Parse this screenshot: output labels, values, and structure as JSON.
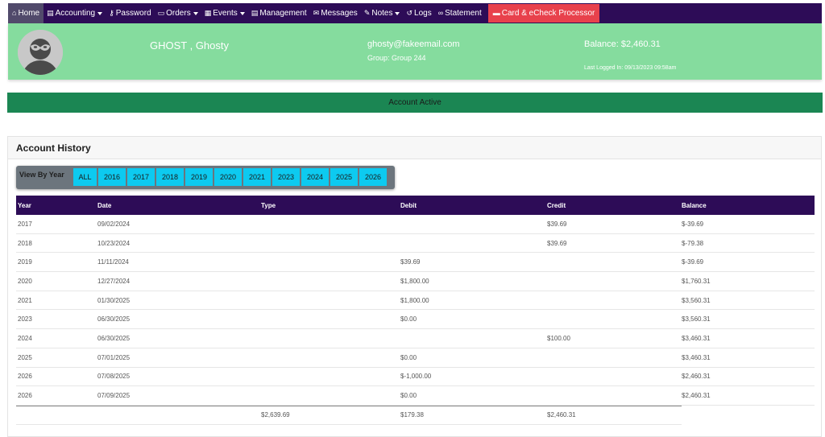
{
  "nav": {
    "items": [
      {
        "label": "Home",
        "icon": "home-icon",
        "glyph": "⌂",
        "dropdown": false,
        "active": true
      },
      {
        "label": "Accounting",
        "icon": "document-icon",
        "glyph": "▤",
        "dropdown": true
      },
      {
        "label": "Password",
        "icon": "key-icon",
        "glyph": "⚷",
        "dropdown": false
      },
      {
        "label": "Orders",
        "icon": "inbox-icon",
        "glyph": "▭",
        "dropdown": true
      },
      {
        "label": "Events",
        "icon": "calendar-icon",
        "glyph": "▦",
        "dropdown": true
      },
      {
        "label": "Management",
        "icon": "document-icon",
        "glyph": "▤",
        "dropdown": false
      },
      {
        "label": "Messages",
        "icon": "chat-icon",
        "glyph": "✉",
        "dropdown": false
      },
      {
        "label": "Notes",
        "icon": "notes-icon",
        "glyph": "✎",
        "dropdown": true
      },
      {
        "label": "Logs",
        "icon": "history-icon",
        "glyph": "↺",
        "dropdown": false
      },
      {
        "label": "Statement",
        "icon": "link-icon",
        "glyph": "∞",
        "dropdown": false
      }
    ],
    "processor": {
      "label": "Card & eCheck Processor",
      "icon": "credit-card-icon",
      "glyph": "▬"
    }
  },
  "profile": {
    "name": "GHOST , Ghosty",
    "email": "ghosty@fakeemail.com",
    "group": "Group: Group 244",
    "balance": "Balance: $2,460.31",
    "last_logged": "Last Logged In: 09/13/2023 09:58am"
  },
  "status": "Account Active",
  "history": {
    "title": "Account History",
    "filter_label": "View By Year",
    "years": [
      "ALL",
      "2016",
      "2017",
      "2018",
      "2019",
      "2020",
      "2021",
      "2023",
      "2024",
      "2025",
      "2026"
    ],
    "columns": {
      "year": "Year",
      "date": "Date",
      "type": "Type",
      "debit": "Debit",
      "credit": "Credit",
      "balance": "Balance"
    },
    "rows": [
      {
        "year": "2017",
        "date": "09/02/2024",
        "type": "",
        "debit": "",
        "credit": "$39.69",
        "balance": "$-39.69"
      },
      {
        "year": "2018",
        "date": "10/23/2024",
        "type": "",
        "debit": "",
        "credit": "$39.69",
        "balance": "$-79.38"
      },
      {
        "year": "2019",
        "date": "11/11/2024",
        "type": "",
        "debit": "$39.69",
        "credit": "",
        "balance": "$-39.69"
      },
      {
        "year": "2020",
        "date": "12/27/2024",
        "type": "",
        "debit": "$1,800.00",
        "credit": "",
        "balance": "$1,760.31"
      },
      {
        "year": "2021",
        "date": "01/30/2025",
        "type": "",
        "debit": "$1,800.00",
        "credit": "",
        "balance": "$3,560.31"
      },
      {
        "year": "2023",
        "date": "06/30/2025",
        "type": "",
        "debit": "$0.00",
        "credit": "",
        "balance": "$3,560.31"
      },
      {
        "year": "2024",
        "date": "06/30/2025",
        "type": "",
        "debit": "",
        "credit": "$100.00",
        "balance": "$3,460.31"
      },
      {
        "year": "2025",
        "date": "07/01/2025",
        "type": "",
        "debit": "$0.00",
        "credit": "",
        "balance": "$3,460.31"
      },
      {
        "year": "2026",
        "date": "07/08/2025",
        "type": "",
        "debit": "$-1,000.00",
        "credit": "",
        "balance": "$2,460.31"
      },
      {
        "year": "2026",
        "date": "07/09/2025",
        "type": "",
        "debit": "$0.00",
        "credit": "",
        "balance": "$2,460.31"
      }
    ],
    "totals": {
      "type": "$2,639.69",
      "debit": "$179.38",
      "credit": "$2,460.31"
    }
  },
  "colors": {
    "nav_bg": "#2d0c57",
    "profile_bg": "#85dc9e",
    "status_bg": "#1b8653",
    "year_btn": "#0dcaf0",
    "processor_btn": "#e8414c"
  }
}
